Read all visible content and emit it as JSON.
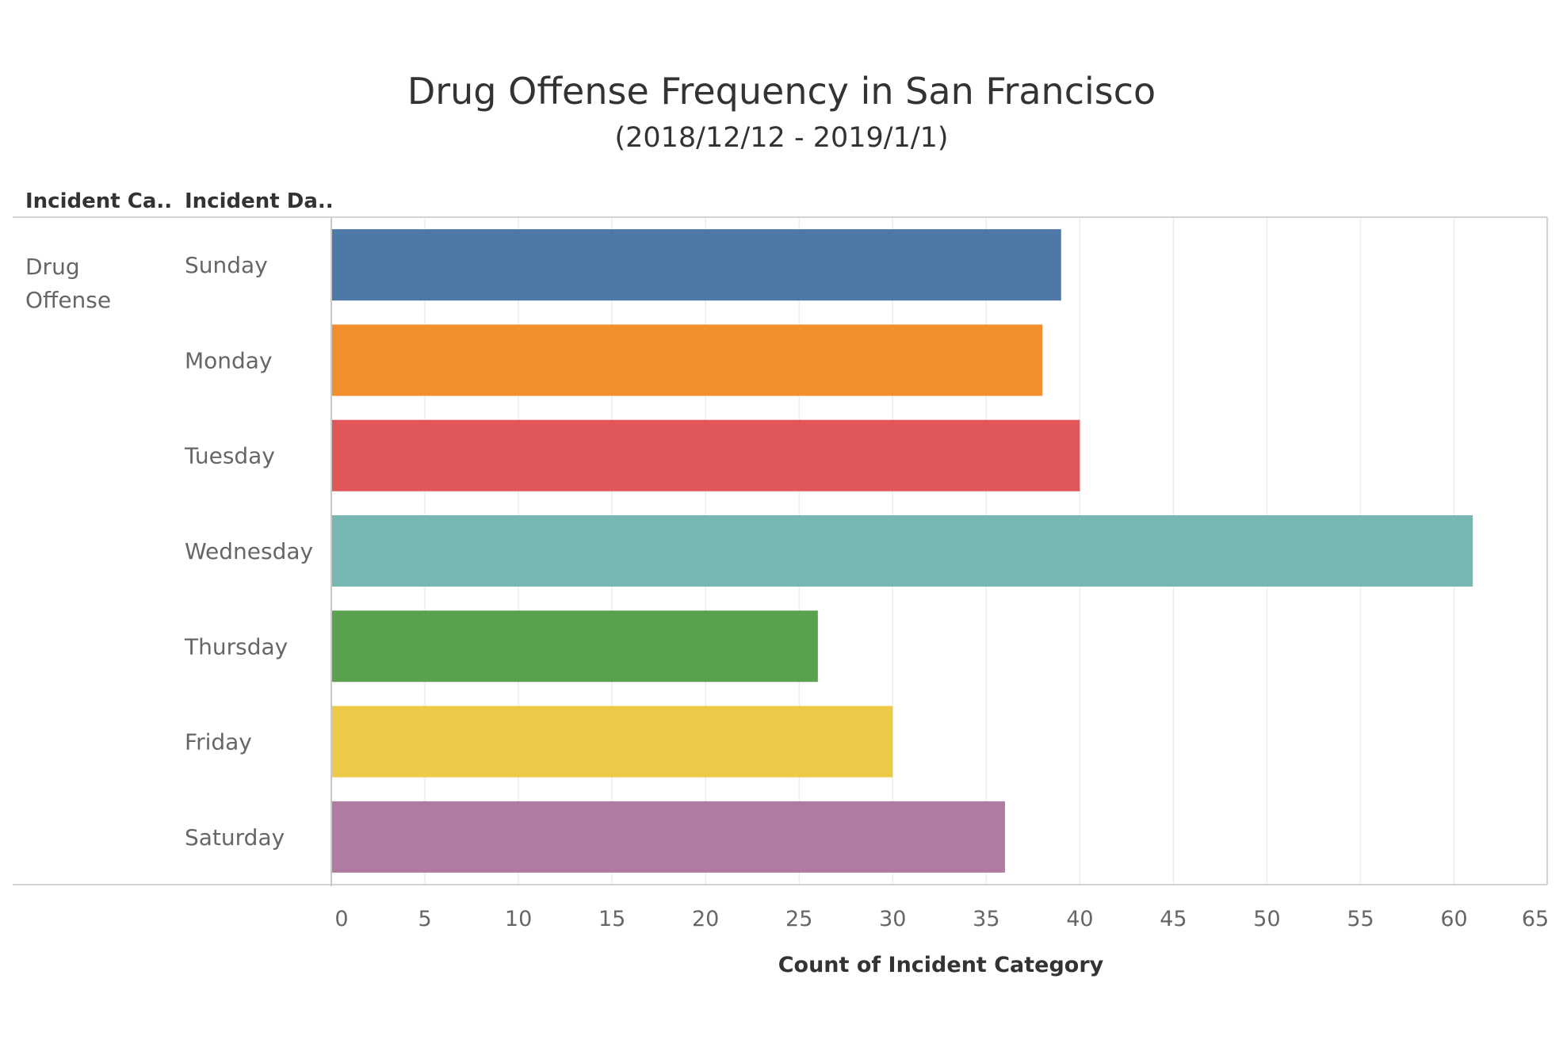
{
  "chart_data": {
    "type": "bar",
    "orientation": "horizontal",
    "title": "Drug Offense Frequency in San Francisco",
    "subtitle": "(2018/12/12 - 2019/1/1)",
    "column_headers": [
      "Incident Ca..",
      "Incident Da.."
    ],
    "category_group": "Drug\nOffense",
    "categories": [
      "Sunday",
      "Monday",
      "Tuesday",
      "Wednesday",
      "Thursday",
      "Friday",
      "Saturday"
    ],
    "values": [
      39,
      38,
      40,
      61,
      26,
      30,
      36
    ],
    "colors": [
      "#4e79a7",
      "#f28e2b",
      "#e15759",
      "#76b7b2",
      "#59a14f",
      "#edc948",
      "#b07aa1"
    ],
    "xlabel": "Count of Incident Category",
    "xlim": [
      0,
      65
    ],
    "xticks": [
      0,
      5,
      10,
      15,
      20,
      25,
      30,
      35,
      40,
      45,
      50,
      55,
      60,
      65
    ],
    "grid": true
  }
}
